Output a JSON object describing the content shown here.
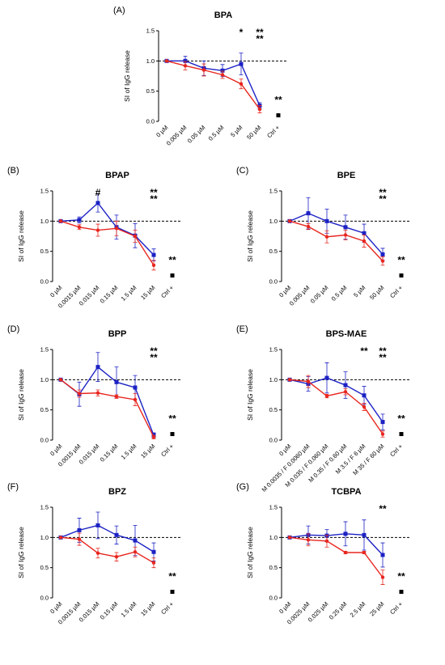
{
  "chart_data": [
    {
      "type": "line",
      "panel": "(A)",
      "title": "BPA",
      "ylabel": "SI of IgG release",
      "categories": [
        "0 µM",
        "0.005 µM",
        "0.05 µM",
        "0.5 µM",
        "5 µM",
        "50 µM",
        "Ctrl +"
      ],
      "ylim": [
        0,
        1.5
      ],
      "yticks": [
        {
          "value": 0,
          "label": "0.0"
        },
        {
          "value": 0.5,
          "label": "0.5"
        },
        {
          "value": 1,
          "label": "1.0"
        },
        {
          "value": 1.5,
          "label": "1.5"
        }
      ],
      "refline": 1,
      "series": [
        {
          "color": "#1c22c4",
          "marker": "square",
          "values": [
            1,
            1.0,
            0.88,
            0.84,
            0.95,
            0.26,
            null
          ],
          "errors": [
            0,
            0.08,
            0.12,
            0.1,
            0.18,
            0.05,
            null
          ]
        },
        {
          "color": "#e8261f",
          "marker": "circle",
          "values": [
            1,
            0.92,
            0.85,
            0.77,
            0.62,
            0.2,
            null
          ],
          "errors": [
            0,
            0.07,
            0.1,
            0.06,
            0.08,
            0.06,
            null
          ]
        },
        {
          "color": "#000000",
          "marker": "square",
          "values": [
            null,
            null,
            null,
            null,
            null,
            null,
            0.1
          ]
        }
      ],
      "annotations": [
        {
          "text": "*",
          "color": "#e8261f",
          "category": 4
        },
        {
          "text": "**",
          "color": "#1f2a8a",
          "category": 5
        },
        {
          "text": "**",
          "color": "#e8261f",
          "category": 5
        },
        {
          "text": "**",
          "color": "#000000",
          "category": 6
        }
      ]
    },
    {
      "type": "line",
      "panel": "(B)",
      "title": "BPAP",
      "ylabel": "SI of IgG release",
      "categories": [
        "0 µM",
        "0.0015 µM",
        "0.015 µM",
        "0.15 µM",
        "1.5 µM",
        "15 µM",
        "Ctrl +"
      ],
      "ylim": [
        0,
        1.5
      ],
      "yticks": [
        {
          "value": 0,
          "label": "0.0"
        },
        {
          "value": 0.5,
          "label": "0.5"
        },
        {
          "value": 1,
          "label": "1.0"
        },
        {
          "value": 1.5,
          "label": "1.5"
        }
      ],
      "refline": 1,
      "series": [
        {
          "color": "#1c22c4",
          "marker": "square",
          "values": [
            1,
            1.02,
            1.3,
            0.9,
            0.76,
            0.44,
            null
          ],
          "errors": [
            0,
            0.05,
            0.15,
            0.2,
            0.2,
            0.1,
            null
          ]
        },
        {
          "color": "#e8261f",
          "marker": "circle",
          "values": [
            1,
            0.9,
            0.85,
            0.88,
            0.75,
            0.27,
            null
          ],
          "errors": [
            0,
            0.04,
            0.1,
            0.12,
            0.1,
            0.08,
            null
          ]
        },
        {
          "color": "#000000",
          "marker": "square",
          "values": [
            null,
            null,
            null,
            null,
            null,
            null,
            0.1
          ]
        }
      ],
      "annotations": [
        {
          "text": "#",
          "color": "#000000",
          "category": 2
        },
        {
          "text": "**",
          "color": "#1f2a8a",
          "category": 5
        },
        {
          "text": "**",
          "color": "#e8261f",
          "category": 5
        },
        {
          "text": "**",
          "color": "#000000",
          "category": 6
        }
      ]
    },
    {
      "type": "line",
      "panel": "(C)",
      "title": "BPE",
      "ylabel": "SI of IgG release",
      "categories": [
        "0 µM",
        "0.005 µM",
        "0.05 µM",
        "0.5 µM",
        "5 µM",
        "50 µM",
        "Ctrl +"
      ],
      "ylim": [
        0,
        1.5
      ],
      "yticks": [
        {
          "value": 0,
          "label": "0.0"
        },
        {
          "value": 0.5,
          "label": "0.5"
        },
        {
          "value": 1,
          "label": "1.0"
        },
        {
          "value": 1.5,
          "label": "1.5"
        }
      ],
      "refline": 1,
      "series": [
        {
          "color": "#1c22c4",
          "marker": "square",
          "values": [
            1,
            1.13,
            1.0,
            0.9,
            0.8,
            0.45,
            null
          ],
          "errors": [
            0,
            0.26,
            0.2,
            0.2,
            0.15,
            0.1,
            null
          ]
        },
        {
          "color": "#e8261f",
          "marker": "circle",
          "values": [
            1,
            0.91,
            0.74,
            0.77,
            0.67,
            0.34,
            null
          ],
          "errors": [
            0,
            0.05,
            0.1,
            0.08,
            0.1,
            0.07,
            null
          ]
        },
        {
          "color": "#000000",
          "marker": "square",
          "values": [
            null,
            null,
            null,
            null,
            null,
            null,
            0.1
          ]
        }
      ],
      "annotations": [
        {
          "text": "**",
          "color": "#1f2a8a",
          "category": 5
        },
        {
          "text": "**",
          "color": "#e8261f",
          "category": 5
        },
        {
          "text": "**",
          "color": "#000000",
          "category": 6
        }
      ]
    },
    {
      "type": "line",
      "panel": "(D)",
      "title": "BPP",
      "ylabel": "SI of IgG release",
      "categories": [
        "0 µM",
        "0.0015 µM",
        "0.015 µM",
        "0.15 µM",
        "1.5 µM",
        "15 µM",
        "Ctrl +"
      ],
      "ylim": [
        0,
        1.5
      ],
      "yticks": [
        {
          "value": 0,
          "label": "0.0"
        },
        {
          "value": 0.5,
          "label": "0.5"
        },
        {
          "value": 1,
          "label": "1.0"
        },
        {
          "value": 1.5,
          "label": "1.5"
        }
      ],
      "refline": 1,
      "series": [
        {
          "color": "#1c22c4",
          "marker": "square",
          "values": [
            1,
            0.76,
            1.21,
            0.96,
            0.87,
            0.08,
            null
          ],
          "errors": [
            0,
            0.2,
            0.24,
            0.25,
            0.2,
            0.04,
            null
          ]
        },
        {
          "color": "#e8261f",
          "marker": "circle",
          "values": [
            1,
            0.77,
            0.78,
            0.72,
            0.67,
            0.05,
            null
          ],
          "errors": [
            0,
            0.06,
            0.05,
            0.03,
            0.1,
            0.03,
            null
          ]
        },
        {
          "color": "#000000",
          "marker": "square",
          "values": [
            null,
            null,
            null,
            null,
            null,
            null,
            0.1
          ]
        }
      ],
      "annotations": [
        {
          "text": "**",
          "color": "#1f2a8a",
          "category": 5
        },
        {
          "text": "**",
          "color": "#e8261f",
          "category": 5
        },
        {
          "text": "**",
          "color": "#000000",
          "category": 6
        }
      ]
    },
    {
      "type": "line",
      "panel": "(E)",
      "title": "BPS-MAE",
      "ylabel": "SI of IgG release",
      "categories": [
        "0 µM",
        "M 0.0035 / F 0.0060 µM",
        "M 0.035 / F 0.060 µM",
        "M 0.35 / F 0.60 µM",
        "M 3.5 / F 6 µM",
        "M 35 / F 60 µM",
        "Ctrl +"
      ],
      "ylim": [
        0,
        1.5
      ],
      "yticks": [
        {
          "value": 0,
          "label": "0.0"
        },
        {
          "value": 0.5,
          "label": "0.5"
        },
        {
          "value": 1,
          "label": "1.0"
        },
        {
          "value": 1.5,
          "label": "1.5"
        }
      ],
      "refline": 1,
      "series": [
        {
          "color": "#1c22c4",
          "marker": "square",
          "values": [
            1,
            0.93,
            1.03,
            0.91,
            0.74,
            0.3,
            null
          ],
          "errors": [
            0,
            0.12,
            0.25,
            0.22,
            0.15,
            0.13,
            null
          ]
        },
        {
          "color": "#e8261f",
          "marker": "circle",
          "values": [
            1,
            0.97,
            0.73,
            0.8,
            0.55,
            0.1,
            null
          ],
          "errors": [
            0,
            0.1,
            0.03,
            0.05,
            0.06,
            0.05,
            null
          ]
        },
        {
          "color": "#000000",
          "marker": "square",
          "values": [
            null,
            null,
            null,
            null,
            null,
            null,
            0.1
          ]
        }
      ],
      "annotations": [
        {
          "text": "**",
          "color": "#e8261f",
          "category": 4
        },
        {
          "text": "**",
          "color": "#1f2a8a",
          "category": 5
        },
        {
          "text": "**",
          "color": "#e8261f",
          "category": 5
        },
        {
          "text": "**",
          "color": "#000000",
          "category": 6
        }
      ]
    },
    {
      "type": "line",
      "panel": "(F)",
      "title": "BPZ",
      "ylabel": "SI of IgG release",
      "categories": [
        "0 µM",
        "0.0015 µM",
        "0.015 µM",
        "0.15 µM",
        "1.5 µM",
        "15 µM",
        "Ctrl +"
      ],
      "ylim": [
        0,
        1.5
      ],
      "yticks": [
        {
          "value": 0,
          "label": "0.0"
        },
        {
          "value": 0.5,
          "label": "0.5"
        },
        {
          "value": 1,
          "label": "1.0"
        },
        {
          "value": 1.5,
          "label": "1.5"
        }
      ],
      "refline": 1,
      "series": [
        {
          "color": "#1c22c4",
          "marker": "square",
          "values": [
            1,
            1.12,
            1.2,
            1.04,
            0.95,
            0.76,
            null
          ],
          "errors": [
            0,
            0.2,
            0.22,
            0.15,
            0.25,
            0.15,
            null
          ]
        },
        {
          "color": "#e8261f",
          "marker": "circle",
          "values": [
            1,
            0.97,
            0.74,
            0.68,
            0.76,
            0.58,
            null
          ],
          "errors": [
            0,
            0.1,
            0.08,
            0.07,
            0.08,
            0.08,
            null
          ]
        },
        {
          "color": "#000000",
          "marker": "square",
          "values": [
            null,
            null,
            null,
            null,
            null,
            null,
            0.1
          ]
        }
      ],
      "annotations": [
        {
          "text": "**",
          "color": "#000000",
          "category": 6
        }
      ]
    },
    {
      "type": "line",
      "panel": "(G)",
      "title": "TCBPA",
      "ylabel": "SI of IgG release",
      "categories": [
        "0 µM",
        "0.0025 µM",
        "0.025 µM",
        "0.25 µM",
        "2.5 µM",
        "25 µM",
        "Ctrl +"
      ],
      "ylim": [
        0,
        1.5
      ],
      "yticks": [
        {
          "value": 0,
          "label": "0.0"
        },
        {
          "value": 0.5,
          "label": "0.5"
        },
        {
          "value": 1,
          "label": "1.0"
        },
        {
          "value": 1.5,
          "label": "1.5"
        }
      ],
      "refline": 1,
      "series": [
        {
          "color": "#1c22c4",
          "marker": "square",
          "values": [
            1,
            1.04,
            1.03,
            1.06,
            1.04,
            0.71,
            null
          ],
          "errors": [
            0,
            0.15,
            0.1,
            0.2,
            0.25,
            0.2,
            null
          ]
        },
        {
          "color": "#e8261f",
          "marker": "circle",
          "values": [
            1,
            0.96,
            0.94,
            0.75,
            0.75,
            0.34,
            null
          ],
          "errors": [
            0,
            0.1,
            0.1,
            0.02,
            0.02,
            0.12,
            null
          ]
        },
        {
          "color": "#000000",
          "marker": "square",
          "values": [
            null,
            null,
            null,
            null,
            null,
            null,
            0.1
          ]
        }
      ],
      "annotations": [
        {
          "text": "**",
          "color": "#e8261f",
          "category": 5
        },
        {
          "text": "**",
          "color": "#000000",
          "category": 6
        }
      ]
    }
  ]
}
